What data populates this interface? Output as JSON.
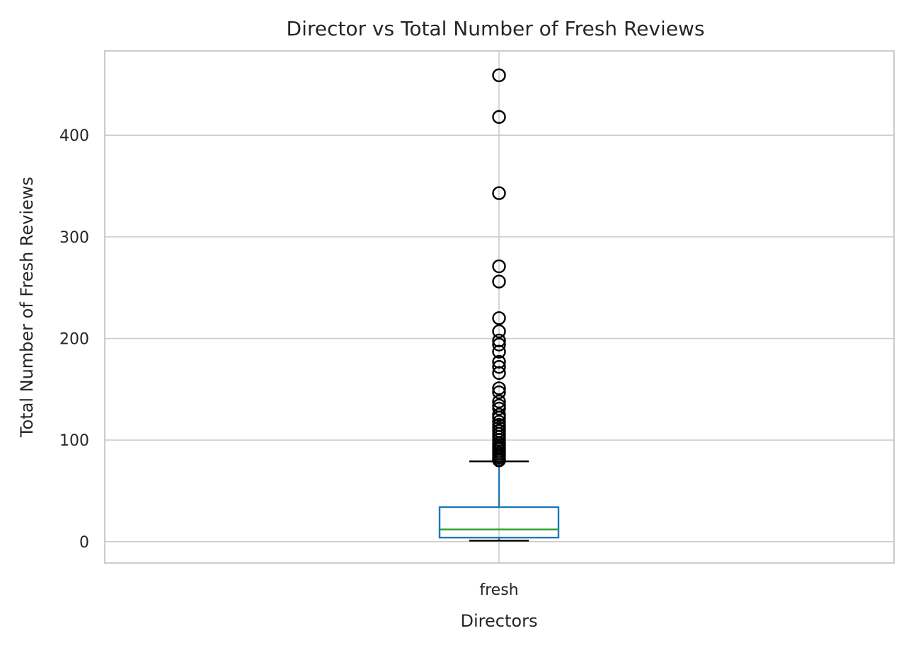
{
  "chart_data": {
    "type": "box",
    "title": "Director vs Total Number of Fresh Reviews",
    "xlabel": "Directors",
    "ylabel": "Total Number of Fresh Reviews",
    "categories": [
      "fresh"
    ],
    "ylim": [
      -21,
      483
    ],
    "yticks": [
      0,
      100,
      200,
      300,
      400
    ],
    "grid": true,
    "box": {
      "min": 1,
      "q1": 4,
      "median": 12,
      "q3": 34,
      "whisker_high": 79,
      "whisker_low": 1,
      "outliers": [
        459,
        418,
        343,
        271,
        256,
        220,
        207,
        198,
        194,
        187,
        177,
        172,
        166,
        151,
        147,
        138,
        134,
        131,
        125,
        122,
        118,
        115,
        112,
        109,
        106,
        103,
        100,
        97,
        95,
        93,
        91,
        89,
        87,
        85,
        83,
        81,
        80
      ]
    },
    "colors": {
      "box": "#1f77b4",
      "median": "#2ca02c",
      "whisker_cap": "#000000",
      "flier": "#000000"
    }
  }
}
